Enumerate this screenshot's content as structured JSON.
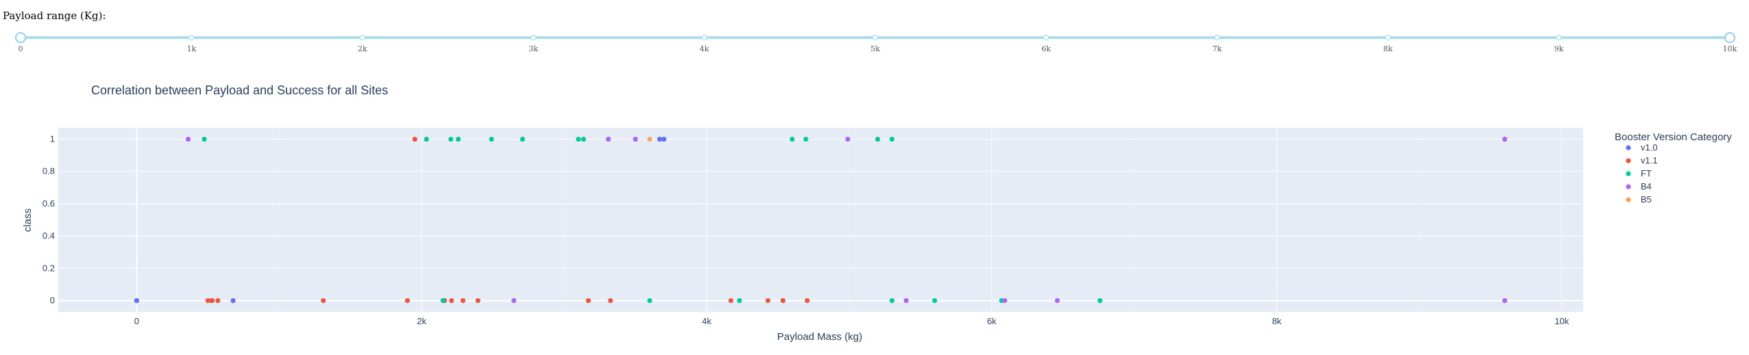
{
  "slider": {
    "label": "Payload range (Kg):",
    "min": 0,
    "max": 10000,
    "value": [
      0,
      10000
    ],
    "marks": [
      "0",
      "1k",
      "2k",
      "3k",
      "4k",
      "5k",
      "6k",
      "7k",
      "8k",
      "9k",
      "10k"
    ],
    "track_color": "#a8dcf3",
    "handle_color": "#8fd1f0"
  },
  "chart_data": {
    "type": "scatter",
    "title": "Correlation between Payload and Success for all Sites",
    "xlabel": "Payload Mass (kg)",
    "ylabel": "class",
    "xlim": [
      -550,
      10150
    ],
    "ylim": [
      -0.07,
      1.07
    ],
    "xticks": [
      0,
      2000,
      4000,
      6000,
      8000,
      10000
    ],
    "xtick_labels": [
      "0",
      "2k",
      "4k",
      "6k",
      "8k",
      "10k"
    ],
    "yticks": [
      0,
      0.2,
      0.4,
      0.6,
      0.8,
      1
    ],
    "ytick_labels": [
      "0",
      "0.2",
      "0.4",
      "0.6",
      "0.8",
      "1"
    ],
    "grid": true,
    "legend_title": "Booster Version Category",
    "legend_position": "right",
    "series": [
      {
        "name": "v1.0",
        "color": "#636efa",
        "points": [
          [
            0,
            0
          ],
          [
            0,
            0
          ],
          [
            525,
            0
          ],
          [
            677,
            0
          ],
          [
            3700,
            1
          ],
          [
            3670,
            1
          ]
        ]
      },
      {
        "name": "v1.1",
        "color": "#ef553b",
        "points": [
          [
            500,
            0
          ],
          [
            530,
            0
          ],
          [
            570,
            0
          ],
          [
            1310,
            0
          ],
          [
            1900,
            0
          ],
          [
            2160,
            0
          ],
          [
            2210,
            0
          ],
          [
            2290,
            0
          ],
          [
            2395,
            0
          ],
          [
            3170,
            0
          ],
          [
            3325,
            0
          ],
          [
            4170,
            0
          ],
          [
            4230,
            0
          ],
          [
            4430,
            0
          ],
          [
            4535,
            0
          ],
          [
            4705,
            0
          ],
          [
            1952,
            1
          ]
        ]
      },
      {
        "name": "FT",
        "color": "#00cc96",
        "points": [
          [
            475,
            1
          ],
          [
            2034,
            1
          ],
          [
            2205,
            1
          ],
          [
            2257,
            1
          ],
          [
            2490,
            1
          ],
          [
            2708,
            1
          ],
          [
            3100,
            1
          ],
          [
            3136,
            1
          ],
          [
            4600,
            1
          ],
          [
            4696,
            1
          ],
          [
            5200,
            1
          ],
          [
            5300,
            1
          ],
          [
            2150,
            0
          ],
          [
            3600,
            0
          ],
          [
            4230,
            0
          ],
          [
            5300,
            0
          ],
          [
            5600,
            0
          ],
          [
            6070,
            0
          ],
          [
            6760,
            0
          ]
        ]
      },
      {
        "name": "B4",
        "color": "#ab63fa",
        "points": [
          [
            362,
            1
          ],
          [
            3310,
            1
          ],
          [
            3500,
            1
          ],
          [
            4990,
            1
          ],
          [
            9600,
            1
          ],
          [
            2647,
            0
          ],
          [
            5400,
            0
          ],
          [
            6092,
            0
          ],
          [
            6460,
            0
          ],
          [
            9600,
            0
          ]
        ]
      },
      {
        "name": "B5",
        "color": "#ffa15a",
        "points": [
          [
            3600,
            1
          ]
        ]
      }
    ]
  }
}
